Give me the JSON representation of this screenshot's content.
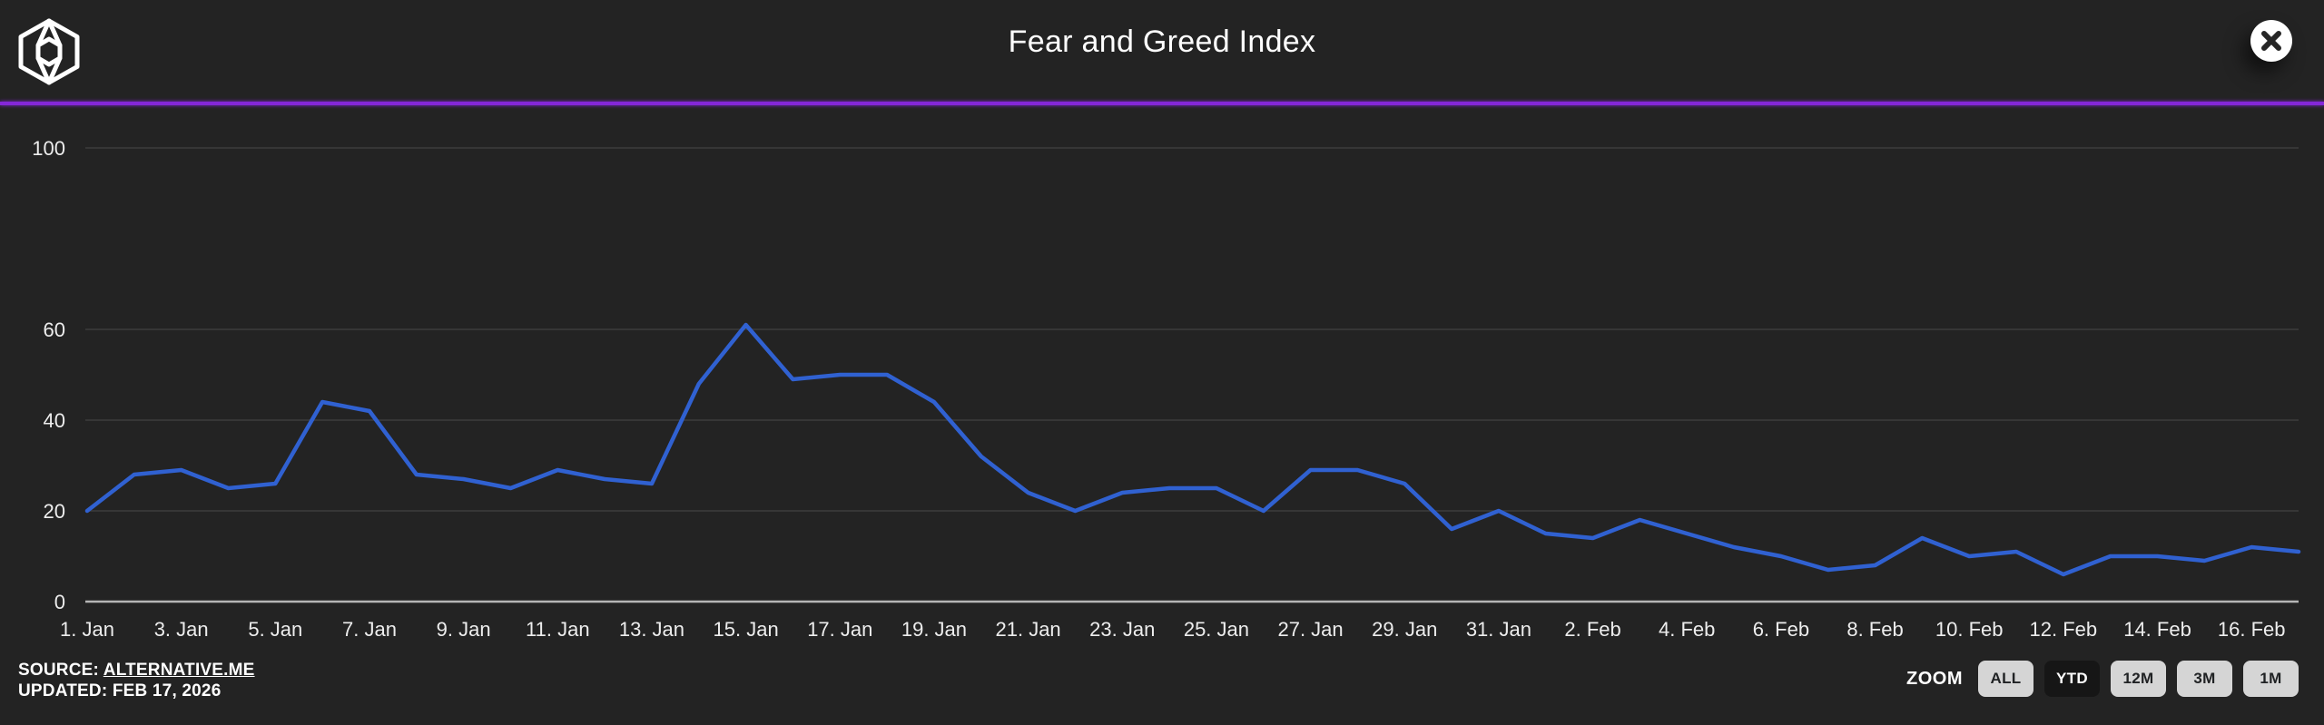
{
  "header": {
    "title": "Fear and Greed Index"
  },
  "icons": {
    "logo": "wireframe-cube",
    "close": "x-mark"
  },
  "colors": {
    "background": "#232323",
    "accent_purple": "#8427d8",
    "line_blue": "#3061d1",
    "grid": "#3c3c3c",
    "axis_zero_line": "#b5b5b5",
    "tick_text": "#ededed",
    "title_text": "#ffffff",
    "button_bg": "#d5d5d5",
    "button_text": "#202224",
    "button_active_bg": "#161616",
    "button_active_text": "#ffffff"
  },
  "footer": {
    "source_label": "SOURCE:",
    "source_link": "ALTERNATIVE.ME",
    "updated_text": "UPDATED: FEB 17, 2026",
    "zoom_label": "ZOOM",
    "zoom_buttons": [
      {
        "label": "ALL",
        "active": false
      },
      {
        "label": "YTD",
        "active": true
      },
      {
        "label": "12M",
        "active": false
      },
      {
        "label": "3M",
        "active": false
      },
      {
        "label": "1M",
        "active": false
      }
    ]
  },
  "chart_data": {
    "type": "line",
    "title": "Fear and Greed Index",
    "xlabel": "",
    "ylabel": "",
    "ylim": [
      0,
      100
    ],
    "y_ticks": [
      0,
      20,
      40,
      60,
      100
    ],
    "grid": "horizontal-only",
    "legend": "none",
    "x_tick_step_days": 2,
    "x_tick_labels": [
      "1. Jan",
      "3. Jan",
      "5. Jan",
      "7. Jan",
      "9. Jan",
      "11. Jan",
      "13. Jan",
      "15. Jan",
      "17. Jan",
      "19. Jan",
      "21. Jan",
      "23. Jan",
      "25. Jan",
      "27. Jan",
      "29. Jan",
      "31. Jan",
      "2. Feb",
      "4. Feb",
      "6. Feb",
      "8. Feb",
      "10. Feb",
      "12. Feb",
      "14. Feb",
      "16. Feb"
    ],
    "dates": [
      "Jan 1",
      "Jan 2",
      "Jan 3",
      "Jan 4",
      "Jan 5",
      "Jan 6",
      "Jan 7",
      "Jan 8",
      "Jan 9",
      "Jan 10",
      "Jan 11",
      "Jan 12",
      "Jan 13",
      "Jan 14",
      "Jan 15",
      "Jan 16",
      "Jan 17",
      "Jan 18",
      "Jan 19",
      "Jan 20",
      "Jan 21",
      "Jan 22",
      "Jan 23",
      "Jan 24",
      "Jan 25",
      "Jan 26",
      "Jan 27",
      "Jan 28",
      "Jan 29",
      "Jan 30",
      "Jan 31",
      "Feb 1",
      "Feb 2",
      "Feb 3",
      "Feb 4",
      "Feb 5",
      "Feb 6",
      "Feb 7",
      "Feb 8",
      "Feb 9",
      "Feb 10",
      "Feb 11",
      "Feb 12",
      "Feb 13",
      "Feb 14",
      "Feb 15",
      "Feb 16",
      "Feb 17"
    ],
    "values": [
      20,
      28,
      29,
      25,
      26,
      44,
      42,
      28,
      27,
      25,
      29,
      27,
      26,
      48,
      61,
      49,
      50,
      50,
      44,
      32,
      24,
      20,
      24,
      25,
      25,
      20,
      29,
      29,
      26,
      16,
      20,
      15,
      14,
      18,
      15,
      12,
      10,
      7,
      8,
      14,
      10,
      11,
      6,
      10,
      10,
      9,
      12,
      11
    ]
  }
}
